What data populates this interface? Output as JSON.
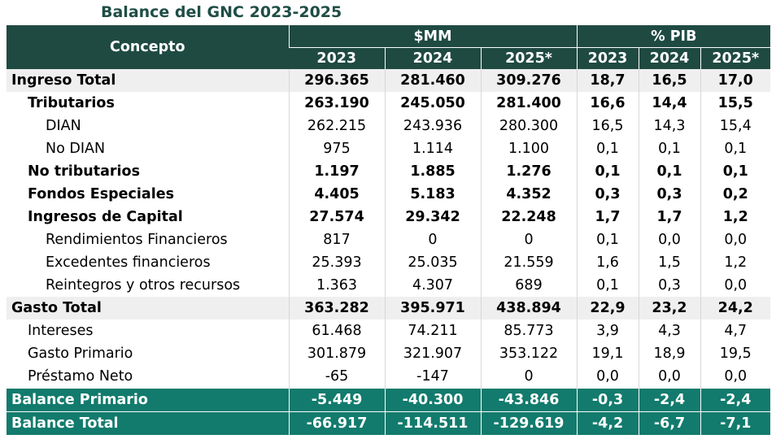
{
  "title": "Balance del GNC 2023-2025",
  "header": {
    "concepto": "Concepto",
    "group1": "$MM",
    "group2": "% PIB",
    "years": [
      "2023",
      "2024",
      "2025*",
      "2023",
      "2024",
      "2025*"
    ]
  },
  "rows": [
    {
      "label": "Ingreso Total",
      "values": [
        "296.365",
        "281.460",
        "309.276",
        "18,7",
        "16,5",
        "17,0"
      ]
    },
    {
      "label": "Tributarios",
      "values": [
        "263.190",
        "245.050",
        "281.400",
        "16,6",
        "14,4",
        "15,5"
      ]
    },
    {
      "label": "DIAN",
      "values": [
        "262.215",
        "243.936",
        "280.300",
        "16,5",
        "14,3",
        "15,4"
      ]
    },
    {
      "label": "No DIAN",
      "values": [
        "975",
        "1.114",
        "1.100",
        "0,1",
        "0,1",
        "0,1"
      ]
    },
    {
      "label": "No tributarios",
      "values": [
        "1.197",
        "1.885",
        "1.276",
        "0,1",
        "0,1",
        "0,1"
      ]
    },
    {
      "label": "Fondos Especiales",
      "values": [
        "4.405",
        "5.183",
        "4.352",
        "0,3",
        "0,3",
        "0,2"
      ]
    },
    {
      "label": "Ingresos de Capital",
      "values": [
        "27.574",
        "29.342",
        "22.248",
        "1,7",
        "1,7",
        "1,2"
      ]
    },
    {
      "label": "Rendimientos Financieros",
      "values": [
        "817",
        "0",
        "0",
        "0,1",
        "0,0",
        "0,0"
      ]
    },
    {
      "label": "Excedentes financieros",
      "values": [
        "25.393",
        "25.035",
        "21.559",
        "1,6",
        "1,5",
        "1,2"
      ]
    },
    {
      "label": "Reintegros y otros recursos",
      "values": [
        "1.363",
        "4.307",
        "689",
        "0,1",
        "0,3",
        "0,0"
      ]
    },
    {
      "label": "Gasto Total",
      "values": [
        "363.282",
        "395.971",
        "438.894",
        "22,9",
        "23,2",
        "24,2"
      ]
    },
    {
      "label": "Intereses",
      "values": [
        "61.468",
        "74.211",
        "85.773",
        "3,9",
        "4,3",
        "4,7"
      ]
    },
    {
      "label": "Gasto Primario",
      "values": [
        "301.879",
        "321.907",
        "353.122",
        "19,1",
        "18,9",
        "19,5"
      ]
    },
    {
      "label": "Préstamo Neto",
      "values": [
        "-65",
        "-147",
        "0",
        "0,0",
        "0,0",
        "0,0"
      ]
    },
    {
      "label": "Balance Primario",
      "values": [
        "-5.449",
        "-40.300",
        "-43.846",
        "-0,3",
        "-2,4",
        "-2,4"
      ]
    },
    {
      "label": "Balance Total",
      "values": [
        "-66.917",
        "-114.511",
        "-129.619",
        "-4,2",
        "-6,7",
        "-7,1"
      ]
    }
  ]
}
